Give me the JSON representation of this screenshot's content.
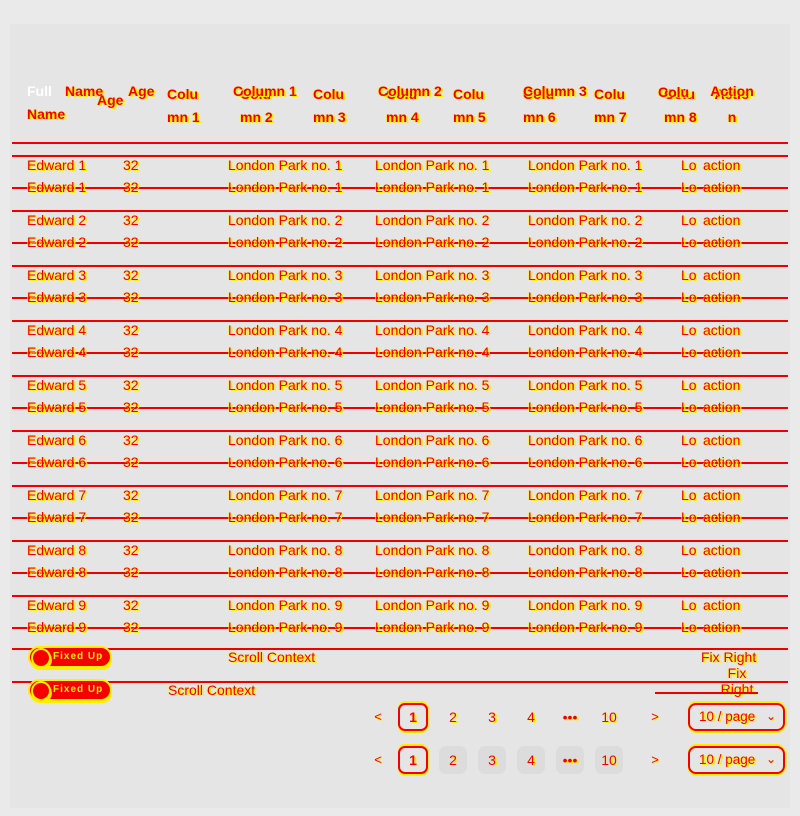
{
  "theme": {
    "red": "#f40000",
    "yellow": "#ffee00",
    "background": "#e5e5e5"
  },
  "table": {
    "header": {
      "full": "Full",
      "name_overlay": "Name",
      "name_line2": "Name",
      "age_ghost": "Age",
      "age": "Age",
      "cols": [
        "Colu\nmn 1",
        "Colu\nmn 2",
        "Colu\nmn 3",
        "Colu\nmn 4",
        "Colu\nmn 5",
        "Colu\nmn 6",
        "Colu\nmn 7",
        "Colu\nmn 8"
      ],
      "overlay1": "Column 1",
      "overlay2": "Column 2",
      "overlay3": "Column 3",
      "col4_ghost": "Colu",
      "action_overlay": "Action",
      "action_wrapped": "Actio\nn"
    },
    "rows": [
      {
        "name": "Edward 1",
        "age": "32",
        "address": "London Park no. 1",
        "action": "action"
      },
      {
        "name": "Edward 2",
        "age": "32",
        "address": "London Park no. 2",
        "action": "action"
      },
      {
        "name": "Edward 3",
        "age": "32",
        "address": "London Park no. 3",
        "action": "action"
      },
      {
        "name": "Edward 4",
        "age": "32",
        "address": "London Park no. 4",
        "action": "action"
      },
      {
        "name": "Edward 5",
        "age": "32",
        "address": "London Park no. 5",
        "action": "action"
      },
      {
        "name": "Edward 6",
        "age": "32",
        "address": "London Park no. 6",
        "action": "action"
      },
      {
        "name": "Edward 7",
        "age": "32",
        "address": "London Park no. 7",
        "action": "action"
      },
      {
        "name": "Edward 8",
        "age": "32",
        "address": "London Park no. 8",
        "action": "action"
      },
      {
        "name": "Edward 9",
        "age": "32",
        "address": "London Park no. 9",
        "action": "action"
      }
    ]
  },
  "footers": [
    {
      "switch_label": "Fixed Up",
      "scroll_label": "Scroll Context",
      "fix_label": "Fix Right"
    },
    {
      "switch_label": "Fixed Up",
      "scroll_label": "Scroll Context",
      "fix_label": "Fix Right"
    }
  ],
  "pagination": {
    "prev": "<",
    "next": ">",
    "pages": [
      "1",
      "2",
      "3",
      "4",
      "•••",
      "10"
    ],
    "active": "1",
    "ellipsis": "•••",
    "page_size": "10 / page",
    "caret": "⌄"
  }
}
